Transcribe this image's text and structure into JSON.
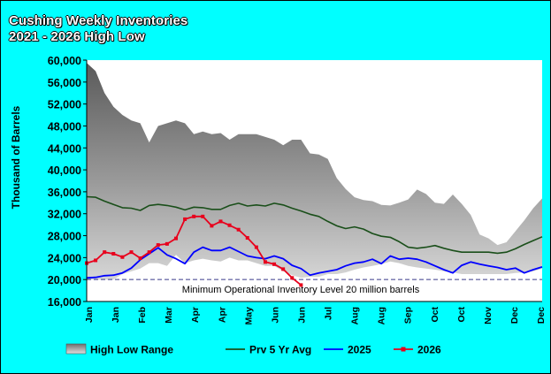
{
  "chart_data": {
    "type": "line",
    "title_line1": "Cushing Weekly Inventories",
    "title_line2": "2021 - 2026 High Low",
    "ylabel": "Thousand of Barrels",
    "xlabel": "",
    "ylim": [
      16000,
      60000
    ],
    "yticks": [
      60000,
      56000,
      52000,
      48000,
      44000,
      40000,
      36000,
      32000,
      28000,
      24000,
      20000,
      16000
    ],
    "ytick_labels": [
      "60,000",
      "56,000",
      "52,000",
      "48,000",
      "44,000",
      "40,000",
      "36,000",
      "32,000",
      "28,000",
      "24,000",
      "20,000",
      "16,000"
    ],
    "xtick_labels": [
      "Jan",
      "Jan",
      "Feb",
      "Mar",
      "Apr",
      "Apr",
      "May",
      "Jun",
      "Jun",
      "Jul",
      "Aug",
      "Aug",
      "Sep",
      "Oct",
      "Oct",
      "Nov",
      "Dec",
      "Dec"
    ],
    "week_count": 52,
    "annotation": "Minimum Operational Inventory Level 20 million barrels",
    "min_operational_level": 20000,
    "grid": false,
    "legend_position": "bottom",
    "colors": {
      "background": "#00ffff",
      "plot_area": "#ffffff",
      "band_dark": "#5a5a5a",
      "band_light": "#d6d6d6",
      "avg": "#1a4f1a",
      "y2025": "#0000ff",
      "y2026": "#e8001c",
      "min_line": "#3a3a8a"
    },
    "series": [
      {
        "name": "High Low Range",
        "kind": "range",
        "high": [
          59500,
          58000,
          54000,
          51500,
          50000,
          49000,
          48500,
          45000,
          48000,
          48500,
          49000,
          48500,
          46500,
          47000,
          46500,
          46700,
          45500,
          46500,
          46500,
          46500,
          46000,
          45500,
          44500,
          45500,
          45500,
          43000,
          42800,
          42000,
          38500,
          36500,
          35000,
          34500,
          34300,
          33600,
          33500,
          34000,
          34600,
          36400,
          35600,
          34000,
          33800,
          35500,
          33800,
          31800,
          28200,
          27500,
          26300,
          26800,
          28800,
          30800,
          33000,
          34800
        ],
        "low": [
          20000,
          20000,
          20000,
          20000,
          21000,
          21500,
          22000,
          23000,
          23000,
          22500,
          24500,
          23000,
          23500,
          23800,
          23500,
          23300,
          24000,
          23500,
          23500,
          23000,
          22500,
          22500,
          21500,
          20800,
          20300,
          20500,
          20500,
          21000,
          21000,
          21300,
          21800,
          22200,
          22500,
          22800,
          23300,
          23000,
          22500,
          22200,
          22000,
          21800,
          21500,
          21300,
          21000,
          21000,
          21000,
          21000,
          21000,
          21000,
          21200,
          21300,
          21500,
          22000
        ]
      },
      {
        "name": "Prv 5 Yr Avg",
        "kind": "line",
        "values": [
          35100,
          35000,
          34300,
          33700,
          33100,
          33000,
          32600,
          33500,
          33700,
          33500,
          33200,
          32700,
          33200,
          33100,
          32800,
          32800,
          33500,
          33900,
          33400,
          33600,
          33400,
          33900,
          33600,
          33000,
          32500,
          31900,
          31500,
          30600,
          29800,
          29300,
          29600,
          29200,
          28400,
          27900,
          27700,
          26900,
          25900,
          25700,
          25900,
          26200,
          25700,
          25300,
          25000,
          25000,
          25000,
          25000,
          24800,
          25000,
          25600,
          26400,
          27100,
          27800
        ]
      },
      {
        "name": "2025",
        "kind": "line",
        "values": [
          20300,
          20400,
          20700,
          20800,
          21200,
          22100,
          23600,
          24700,
          25800,
          24500,
          23800,
          22900,
          25000,
          25900,
          25300,
          25300,
          25900,
          25100,
          24300,
          24000,
          23800,
          24300,
          23800,
          22600,
          22000,
          20800,
          21200,
          21500,
          21800,
          22500,
          23000,
          23200,
          23700,
          22900,
          24300,
          23700,
          23900,
          23700,
          23200,
          22500,
          21800,
          21200,
          22600,
          23200,
          22800,
          22500,
          22200,
          21800,
          22100,
          21200,
          21800,
          22300
        ]
      },
      {
        "name": "2026",
        "kind": "line",
        "values": [
          23000,
          23500,
          25000,
          24700,
          24100,
          25000,
          23900,
          25000,
          26300,
          26500,
          27500,
          31000,
          31500,
          31500,
          29800,
          30600,
          29900,
          29100,
          27600,
          25900,
          23200,
          22800,
          21900,
          20300,
          19000
        ]
      }
    ]
  }
}
